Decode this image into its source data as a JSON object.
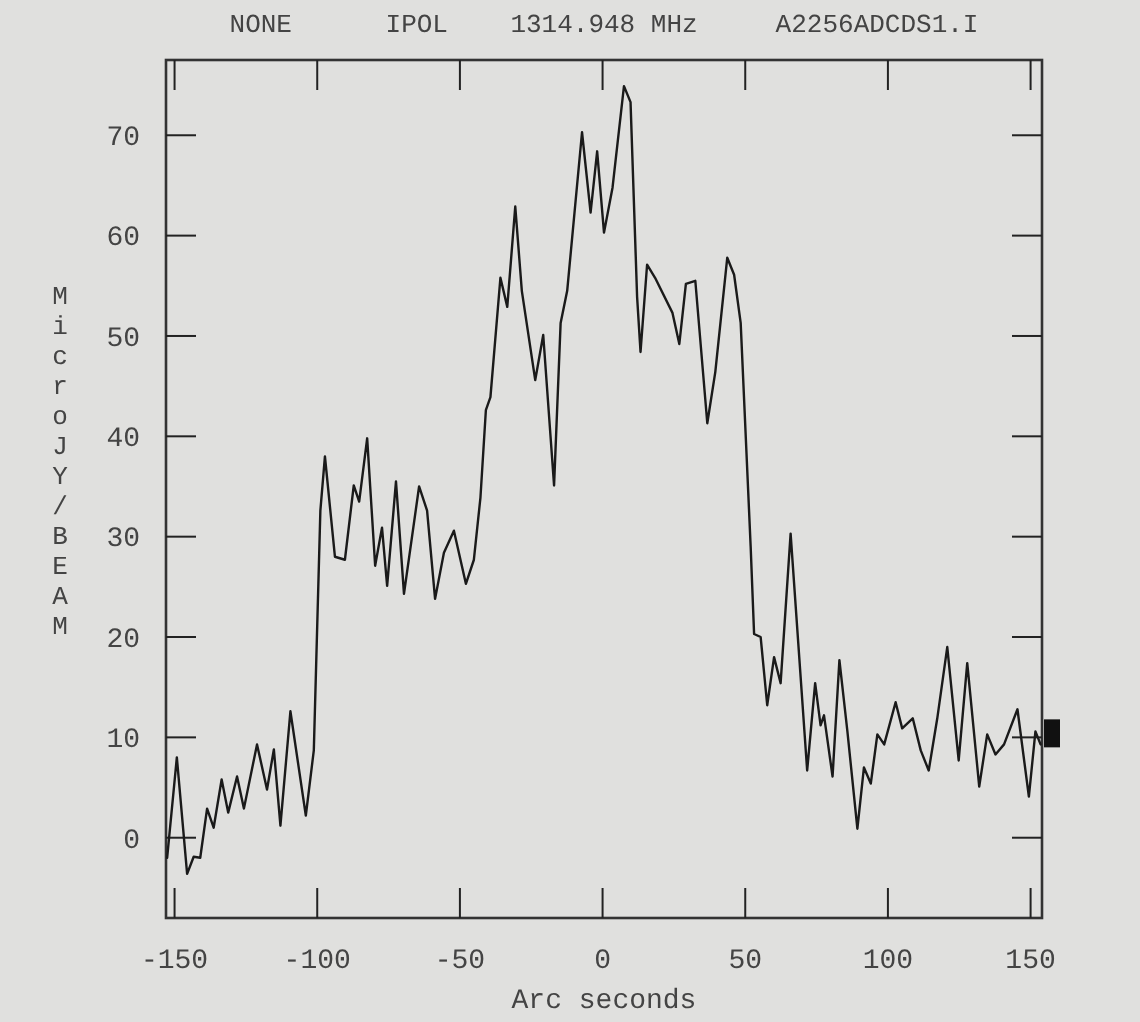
{
  "chart_data": {
    "type": "line",
    "title": "NONE      IPOL    1314.948 MHz     A2256ADCDS1.I",
    "xlabel": "Arc seconds",
    "ylabel": "MicroJY/BEAM",
    "xlim": [
      -153,
      154
    ],
    "ylim": [
      -8,
      77.5
    ],
    "xticks": [
      -150,
      -100,
      -50,
      0,
      50,
      100,
      150
    ],
    "yticks": [
      0,
      10,
      20,
      30,
      40,
      50,
      60,
      70
    ],
    "grid": false,
    "marker": "none",
    "line_style": "solid",
    "series": [
      {
        "color": "#1a1a1a",
        "x": [
          -152.6,
          -149.2,
          -145.6,
          -143.3,
          -141,
          -138.6,
          -136.3,
          -133.5,
          -131.2,
          -128.1,
          -125.7,
          -121.1,
          -117.6,
          -115.2,
          -112.9,
          -109.4,
          -104,
          -101.2,
          -98.9,
          -97.3,
          -93.8,
          -90.3,
          -87.2,
          -85.3,
          -82.5,
          -79.7,
          -77.3,
          -75.5,
          -72.4,
          -69.6,
          -64.3,
          -61.5,
          -58.7,
          -55.6,
          -52.1,
          -47.9,
          -45.1,
          -42.8,
          -40.9,
          -39.3,
          -35.8,
          -33.4,
          -30.6,
          -28.3,
          -23.6,
          -20.8,
          -17.0,
          -14.7,
          -12.4,
          -7.2,
          -4.2,
          -1.9,
          0.5,
          3.5,
          7.5,
          9.8,
          12.1,
          13.3,
          15.6,
          18.4,
          24.5,
          26.9,
          29.2,
          32.5,
          36.7,
          39.5,
          43.7,
          46.1,
          48.4,
          51.9,
          53.1,
          55.4,
          57.7,
          60.1,
          62.4,
          65.9,
          71.7,
          74.5,
          76.4,
          77.6,
          80.6,
          83.0,
          85.8,
          89.3,
          91.6,
          94.0,
          96.3,
          98.7,
          102.7,
          105.0,
          108.7,
          111.5,
          114.3,
          117.3,
          120.8,
          124.8,
          127.8,
          132.0,
          134.8,
          137.7,
          140.7,
          145.4,
          149.4,
          151.7,
          153.5
        ],
        "values": [
          -2.0,
          8.0,
          -3.6,
          -1.9,
          -2.0,
          2.9,
          1.0,
          5.8,
          2.5,
          6.1,
          2.9,
          9.3,
          4.8,
          8.8,
          1.2,
          12.6,
          2.2,
          8.7,
          32.6,
          38.0,
          28.0,
          27.7,
          35.1,
          33.5,
          39.8,
          27.1,
          30.9,
          25.1,
          35.5,
          24.3,
          35.0,
          32.6,
          23.8,
          28.4,
          30.6,
          25.3,
          27.7,
          33.9,
          42.6,
          43.9,
          55.8,
          52.9,
          62.9,
          54.5,
          45.6,
          50.1,
          35.1,
          51.3,
          54.5,
          70.3,
          62.3,
          68.4,
          60.3,
          64.8,
          74.9,
          73.3,
          53.9,
          48.4,
          57.1,
          55.8,
          52.3,
          49.2,
          55.2,
          55.5,
          41.3,
          46.4,
          57.8,
          56.1,
          51.3,
          29.0,
          20.3,
          20.0,
          13.2,
          18.0,
          15.4,
          30.3,
          6.7,
          15.4,
          11.2,
          12.2,
          6.1,
          17.7,
          10.6,
          0.9,
          7.0,
          5.4,
          10.3,
          9.3,
          13.5,
          10.9,
          11.9,
          8.7,
          6.7,
          11.9,
          19.0,
          7.7,
          17.4,
          5.1,
          10.3,
          8.3,
          9.3,
          12.8,
          4.1,
          10.6,
          9.3
        ]
      }
    ]
  }
}
